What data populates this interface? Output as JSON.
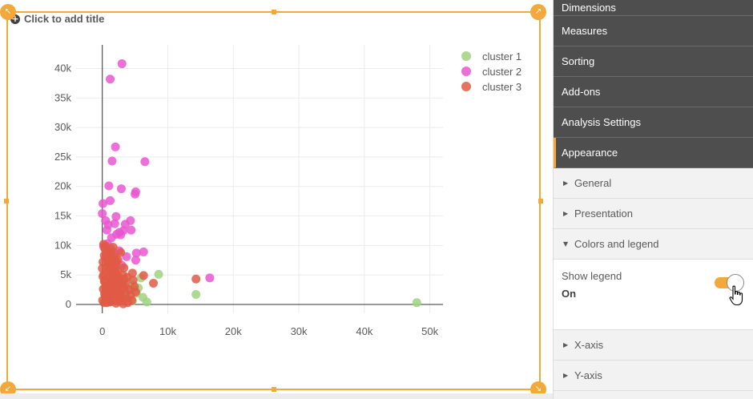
{
  "chart": {
    "title_placeholder": "Click to add title",
    "plus_icon": "+"
  },
  "chart_data": {
    "type": "scatter",
    "title": "",
    "xlabel": "",
    "ylabel": "",
    "xlim": [
      -4000,
      52000
    ],
    "ylim": [
      -1500,
      44000
    ],
    "x_ticks": [
      0,
      10000,
      20000,
      30000,
      40000,
      50000
    ],
    "x_tick_labels": [
      "0",
      "10k",
      "20k",
      "30k",
      "40k",
      "50k"
    ],
    "y_ticks": [
      0,
      5000,
      10000,
      15000,
      20000,
      25000,
      30000,
      35000,
      40000
    ],
    "y_tick_labels": [
      "0",
      "5k",
      "10k",
      "15k",
      "20k",
      "25k",
      "30k",
      "35k",
      "40k"
    ],
    "grid": true,
    "legend_position": "top-right",
    "series": [
      {
        "name": "cluster 1",
        "color": "#9fd27f",
        "points": [
          [
            48000,
            300
          ],
          [
            14300,
            1700
          ],
          [
            8600,
            5100
          ],
          [
            6800,
            400
          ],
          [
            5900,
            4500
          ],
          [
            6200,
            1200
          ],
          [
            4300,
            2600
          ],
          [
            5200,
            1900
          ],
          [
            3400,
            3100
          ],
          [
            3900,
            900
          ],
          [
            2900,
            4200
          ],
          [
            4700,
            3300
          ],
          [
            2400,
            1500
          ],
          [
            4600,
            600
          ],
          [
            3600,
            2000
          ],
          [
            5500,
            2800
          ]
        ]
      },
      {
        "name": "cluster 2",
        "color": "#e957d0",
        "points": [
          [
            3000,
            40800
          ],
          [
            1200,
            38200
          ],
          [
            2000,
            26700
          ],
          [
            6500,
            24200
          ],
          [
            1500,
            24300
          ],
          [
            2900,
            19600
          ],
          [
            5100,
            19100
          ],
          [
            5000,
            18700
          ],
          [
            1000,
            20100
          ],
          [
            1200,
            17600
          ],
          [
            100,
            17100
          ],
          [
            0,
            15400
          ],
          [
            500,
            14200
          ],
          [
            2100,
            14900
          ],
          [
            900,
            13500
          ],
          [
            1900,
            13700
          ],
          [
            3500,
            13600
          ],
          [
            4300,
            14200
          ],
          [
            700,
            12600
          ],
          [
            2200,
            11900
          ],
          [
            2600,
            12200
          ],
          [
            3200,
            12500
          ],
          [
            4400,
            12600
          ],
          [
            1400,
            11300
          ],
          [
            2800,
            11800
          ],
          [
            16400,
            4500
          ],
          [
            6300,
            8900
          ],
          [
            5200,
            8700
          ],
          [
            5100,
            7500
          ],
          [
            3700,
            8100
          ],
          [
            1300,
            9500
          ],
          [
            200,
            9800
          ],
          [
            800,
            10300
          ],
          [
            2600,
            9100
          ],
          [
            1800,
            8500
          ],
          [
            500,
            7800
          ],
          [
            3000,
            6600
          ]
        ]
      },
      {
        "name": "cluster 3",
        "color": "#e05a45",
        "points": [
          [
            14300,
            4300
          ],
          [
            7800,
            3600
          ],
          [
            6300,
            4900
          ],
          [
            5100,
            2100
          ],
          [
            4600,
            5300
          ],
          [
            3800,
            4600
          ],
          [
            3300,
            6200
          ],
          [
            2800,
            8800
          ],
          [
            2400,
            7500
          ],
          [
            2100,
            6800
          ],
          [
            1900,
            5900
          ],
          [
            1700,
            4800
          ],
          [
            1500,
            3700
          ],
          [
            1300,
            2600
          ],
          [
            1100,
            1700
          ],
          [
            900,
            800
          ],
          [
            700,
            300
          ],
          [
            500,
            9900
          ],
          [
            300,
            8300
          ],
          [
            100,
            7200
          ],
          [
            0,
            6100
          ],
          [
            200,
            5000
          ],
          [
            400,
            4000
          ],
          [
            600,
            3100
          ],
          [
            800,
            2200
          ],
          [
            1000,
            1300
          ],
          [
            1200,
            400
          ],
          [
            1400,
            9000
          ],
          [
            1600,
            7800
          ],
          [
            1800,
            6600
          ],
          [
            2000,
            5400
          ],
          [
            2200,
            4300
          ],
          [
            2400,
            3300
          ],
          [
            2600,
            2400
          ],
          [
            2800,
            1500
          ],
          [
            3000,
            600
          ],
          [
            3200,
            100
          ],
          [
            200,
            10200
          ],
          [
            400,
            9400
          ],
          [
            600,
            8600
          ],
          [
            800,
            7700
          ],
          [
            1000,
            6900
          ],
          [
            1200,
            6000
          ],
          [
            1400,
            5200
          ],
          [
            1600,
            4400
          ],
          [
            1800,
            3600
          ],
          [
            2000,
            2800
          ],
          [
            2200,
            2000
          ],
          [
            2400,
            1100
          ],
          [
            2600,
            500
          ],
          [
            100,
            4700
          ],
          [
            300,
            3900
          ],
          [
            500,
            3000
          ],
          [
            700,
            2100
          ],
          [
            900,
            1200
          ],
          [
            1100,
            500
          ],
          [
            1300,
            3400
          ],
          [
            1500,
            2500
          ],
          [
            1700,
            1600
          ],
          [
            1900,
            700
          ],
          [
            2100,
            200
          ],
          [
            2300,
            3800
          ],
          [
            2500,
            2900
          ],
          [
            2700,
            2000
          ],
          [
            2900,
            1100
          ],
          [
            3100,
            3500
          ],
          [
            3300,
            2700
          ],
          [
            3500,
            1800
          ],
          [
            3700,
            900
          ],
          [
            3900,
            300
          ],
          [
            4100,
            2500
          ],
          [
            4300,
            1600
          ],
          [
            4500,
            700
          ],
          [
            4700,
            4100
          ],
          [
            4900,
            3000
          ],
          [
            150,
            2600
          ],
          [
            350,
            1800
          ],
          [
            550,
            900
          ],
          [
            750,
            5600
          ],
          [
            950,
            4800
          ],
          [
            1150,
            4000
          ],
          [
            1350,
            3200
          ],
          [
            1550,
            2400
          ],
          [
            1750,
            6300
          ],
          [
            1950,
            5100
          ],
          [
            2150,
            7300
          ],
          [
            2350,
            5700
          ],
          [
            2550,
            4600
          ],
          [
            2750,
            3900
          ],
          [
            2950,
            2900
          ],
          [
            3150,
            5000
          ],
          [
            3350,
            4300
          ],
          [
            3550,
            3400
          ],
          [
            50,
            700
          ],
          [
            250,
            300
          ],
          [
            450,
            1400
          ],
          [
            650,
            6400
          ],
          [
            850,
            7100
          ],
          [
            1050,
            8100
          ],
          [
            1250,
            8800
          ],
          [
            1450,
            7500
          ],
          [
            1650,
            9700
          ],
          [
            1850,
            8000
          ]
        ]
      }
    ]
  },
  "panel": {
    "sections": [
      {
        "label": "Dimensions"
      },
      {
        "label": "Measures"
      },
      {
        "label": "Sorting"
      },
      {
        "label": "Add-ons"
      },
      {
        "label": "Analysis Settings"
      },
      {
        "label": "Appearance"
      }
    ],
    "appearance_items": [
      {
        "label": "General",
        "arrow": "▶"
      },
      {
        "label": "Presentation",
        "arrow": "▶"
      },
      {
        "label": "Colors and legend",
        "arrow": "▼"
      }
    ],
    "show_legend_label": "Show legend",
    "show_legend_value": "On",
    "show_legend_on": true,
    "axis_items": [
      {
        "label": "X-axis",
        "arrow": "▶"
      },
      {
        "label": "Y-axis",
        "arrow": "▶"
      }
    ],
    "accent_color": "#f3a83b"
  }
}
